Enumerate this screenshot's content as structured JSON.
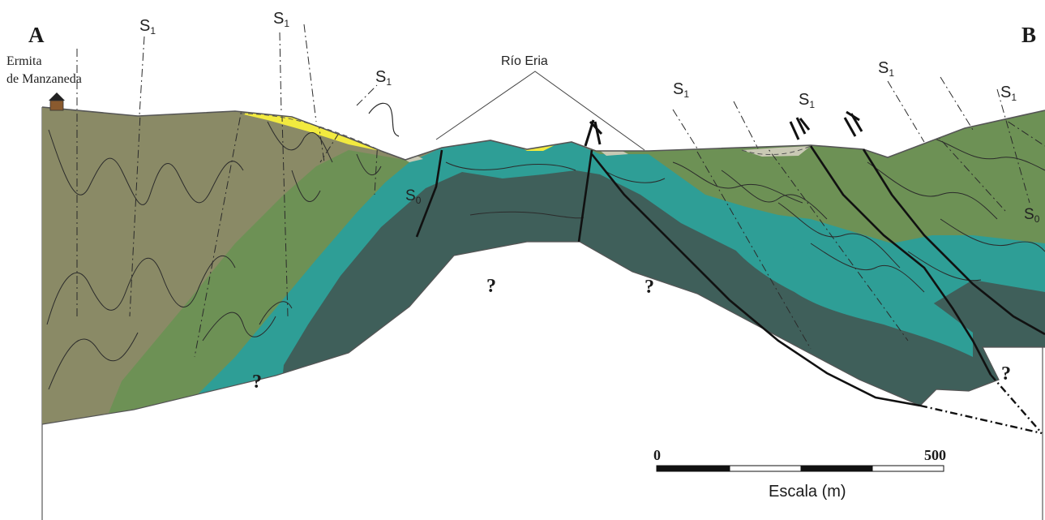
{
  "labels": {
    "corner_left": "A",
    "corner_right": "B",
    "place_line1": "Ermita",
    "place_line2": "de Manzaneda",
    "river": "Río Eria",
    "cleavage": "S",
    "cleavage_sub": "1",
    "bedding": "S",
    "bedding_sub": "0",
    "unknown": "?"
  },
  "scale": {
    "min_label": "0",
    "max_label": "500",
    "title": "Escala (m)"
  },
  "colors": {
    "unit_olive": "#8a8a66",
    "unit_green": "#6d9155",
    "unit_teal": "#2e9e96",
    "unit_dark": "#3f5f5a",
    "quaternary_yellow": "#f2ea3f",
    "quaternary_grey": "#c9c9b4"
  }
}
